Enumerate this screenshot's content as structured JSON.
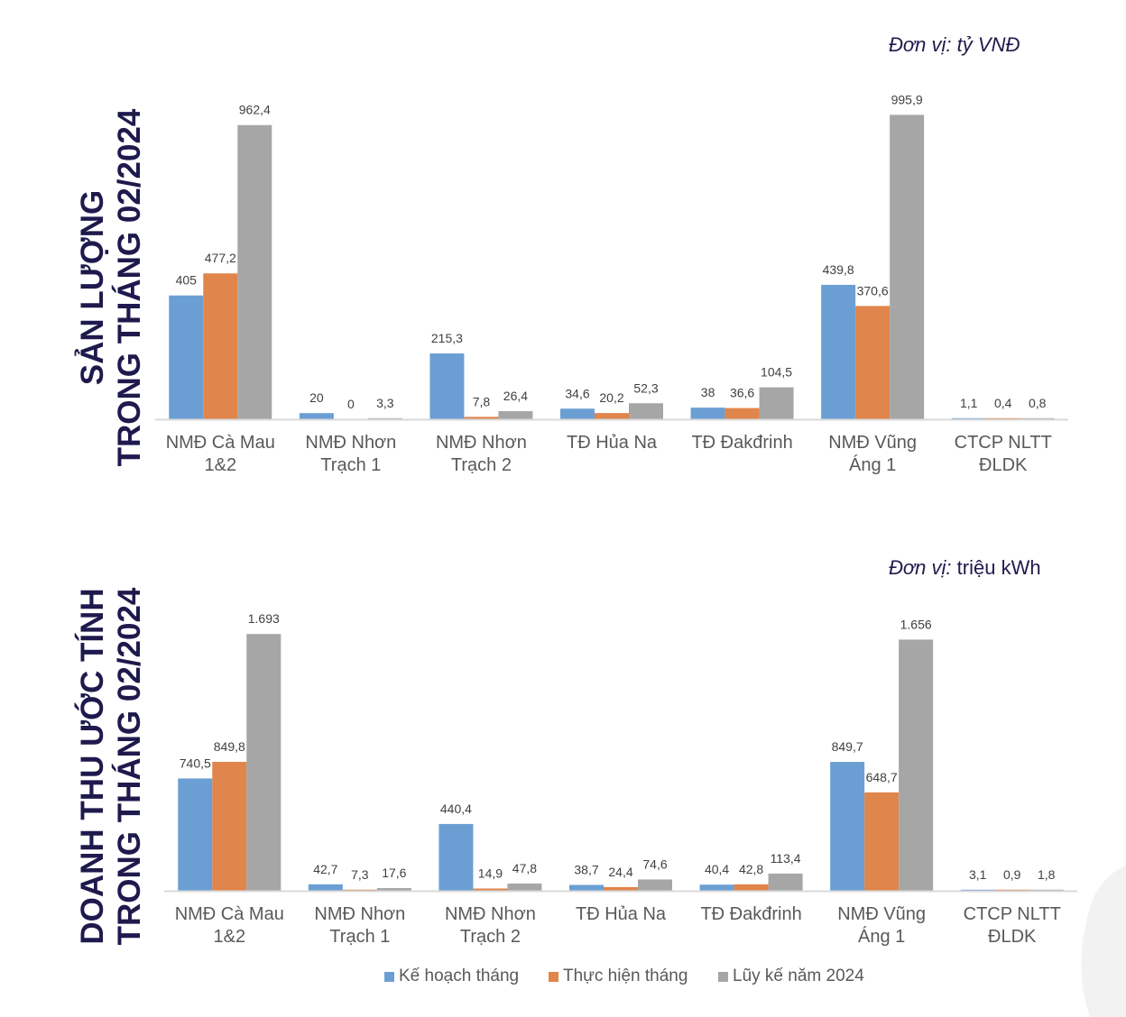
{
  "sections": {
    "production": {
      "title_line1": "SẢN LƯỢNG",
      "title_line2": "TRONG THÁNG 02/2024",
      "unit_prefix": "Đơn vị:",
      "unit_value": "tỷ VNĐ"
    },
    "revenue": {
      "title_line1": "DOANH THU ƯỚC TÍNH",
      "title_line2": "TRONG THÁNG 02/2024",
      "unit_prefix": "Đơn vị:",
      "unit_value": "triệu kWh"
    }
  },
  "legend": {
    "plan": "Kế hoạch tháng",
    "actual": "Thực hiện tháng",
    "ytd": "Lũy kế năm 2024"
  },
  "colors": {
    "plan": "#6b9fd4",
    "actual": "#e0854b",
    "ytd": "#a6a6a6",
    "title": "#1f1a4d"
  },
  "chart_data": [
    {
      "type": "bar",
      "title": "SẢN LƯỢNG TRONG THÁNG 02/2024",
      "unit": "Đơn vị: tỷ VNĐ",
      "categories": [
        [
          "NMĐ Cà Mau",
          "1&2"
        ],
        [
          "NMĐ Nhơn",
          "Trạch 1"
        ],
        [
          "NMĐ Nhơn",
          "Trạch 2"
        ],
        [
          "TĐ Hủa Na"
        ],
        [
          "TĐ Đakđrinh"
        ],
        [
          "NMĐ Vũng",
          "Áng 1"
        ],
        [
          "CTCP NLTT",
          "ĐLDK"
        ]
      ],
      "series": [
        {
          "name": "Kế hoạch tháng",
          "values": [
            405,
            20,
            215.3,
            34.6,
            38,
            439.8,
            1.1
          ],
          "labels": [
            "405",
            "20",
            "215,3",
            "34,6",
            "38",
            "439,8",
            "1,1"
          ]
        },
        {
          "name": "Thực hiện tháng",
          "values": [
            477.2,
            0,
            7.8,
            20.2,
            36.6,
            370.6,
            0.4
          ],
          "labels": [
            "477,2",
            "0",
            "7,8",
            "20,2",
            "36,6",
            "370,6",
            "0,4"
          ]
        },
        {
          "name": "Lũy kế năm 2024",
          "values": [
            962.4,
            3.3,
            26.4,
            52.3,
            104.5,
            995.9,
            0.8
          ],
          "labels": [
            "962,4",
            "3,3",
            "26,4",
            "52,3",
            "104,5",
            "995,9",
            "0,8"
          ]
        }
      ],
      "ylim": [
        0,
        1000
      ]
    },
    {
      "type": "bar",
      "title": "DOANH THU ƯỚC TÍNH TRONG THÁNG 02/2024",
      "unit": "Đơn vị: triệu kWh",
      "categories": [
        [
          "NMĐ Cà Mau",
          "1&2"
        ],
        [
          "NMĐ Nhơn",
          "Trạch 1"
        ],
        [
          "NMĐ Nhơn",
          "Trạch 2"
        ],
        [
          "TĐ Hủa Na"
        ],
        [
          "TĐ Đakđrinh"
        ],
        [
          "NMĐ Vũng",
          "Áng 1"
        ],
        [
          "CTCP NLTT",
          "ĐLDK"
        ]
      ],
      "series": [
        {
          "name": "Kế hoạch tháng",
          "values": [
            740.5,
            42.7,
            440.4,
            38.7,
            40.4,
            849.7,
            3.1
          ],
          "labels": [
            "740,5",
            "42,7",
            "440,4",
            "38,7",
            "40,4",
            "849,7",
            "3,1"
          ]
        },
        {
          "name": "Thực hiện tháng",
          "values": [
            849.8,
            7.3,
            14.9,
            24.4,
            42.8,
            648.7,
            0.9
          ],
          "labels": [
            "849,8",
            "7,3",
            "14,9",
            "24,4",
            "42,8",
            "648,7",
            "0,9"
          ]
        },
        {
          "name": "Lũy kế năm 2024",
          "values": [
            1693,
            17.6,
            47.8,
            74.6,
            113.4,
            1656,
            1.8
          ],
          "labels": [
            "1.693",
            "17,6",
            "47,8",
            "74,6",
            "113,4",
            "1.656",
            "1,8"
          ]
        }
      ],
      "ylim": [
        0,
        1700
      ]
    }
  ]
}
